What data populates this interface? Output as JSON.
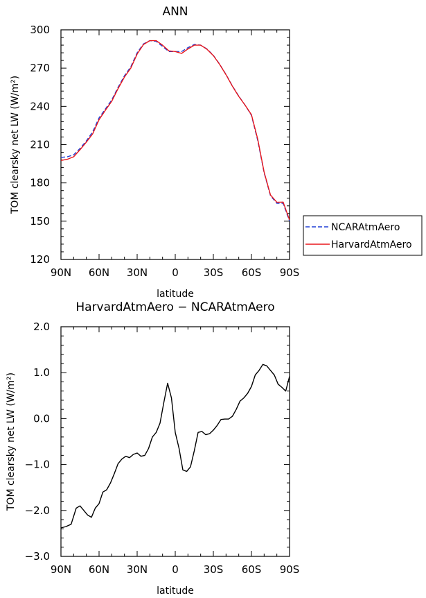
{
  "chart_data": [
    {
      "type": "line",
      "title": "ANN",
      "xlabel": "latitude",
      "ylabel": "TOM clearsky net LW (W/m²)",
      "xlim": [
        90,
        -90
      ],
      "ylim": [
        120,
        300
      ],
      "x_ticks": [
        90,
        60,
        30,
        0,
        -30,
        -60,
        -90
      ],
      "x_tick_labels": [
        "90N",
        "60N",
        "30N",
        "0",
        "30S",
        "60S",
        "90S"
      ],
      "y_ticks": [
        120,
        150,
        180,
        210,
        240,
        270,
        300
      ],
      "y_tick_labels": [
        "120",
        "150",
        "180",
        "210",
        "240",
        "270",
        "300"
      ],
      "legend_position": "right",
      "x": [
        90,
        85,
        80,
        75,
        70,
        65,
        60,
        55,
        50,
        45,
        40,
        35,
        30,
        25,
        20,
        15,
        10,
        5,
        0,
        -5,
        -10,
        -15,
        -20,
        -25,
        -30,
        -35,
        -40,
        -45,
        -50,
        -55,
        -60,
        -65,
        -70,
        -75,
        -80,
        -85,
        -90
      ],
      "series": [
        {
          "name": "NCARAtmAero",
          "color": "#1f3fd6",
          "dash": "dashed",
          "values": [
            200,
            200.5,
            202,
            207,
            213,
            220,
            231,
            238,
            245,
            255,
            264,
            271,
            282,
            289,
            291.5,
            291,
            287,
            283,
            283,
            283,
            286,
            288.5,
            288,
            285,
            280,
            273,
            265,
            256,
            248,
            241,
            233,
            213,
            188,
            170,
            164,
            164,
            150
          ]
        },
        {
          "name": "HarvardAtmAero",
          "color": "#e8161b",
          "dash": "solid",
          "values": [
            197.6,
            198.5,
            200.5,
            206,
            212,
            218.5,
            229.5,
            237,
            244,
            254,
            263,
            270,
            281,
            288.5,
            291.5,
            291.5,
            288,
            283.5,
            283,
            281.5,
            285,
            288,
            288,
            284.8,
            279.8,
            272.8,
            264.8,
            255.8,
            247.8,
            241,
            233.5,
            214,
            188.5,
            170.5,
            164.8,
            165,
            150.9
          ]
        }
      ]
    },
    {
      "type": "line",
      "title": "HarvardAtmAero − NCARAtmAero",
      "xlabel": "latitude",
      "ylabel": "TOM clearsky net LW (W/m²)",
      "xlim": [
        90,
        -90
      ],
      "ylim": [
        -3.0,
        2.0
      ],
      "x_ticks": [
        90,
        60,
        30,
        0,
        -30,
        -60,
        -90
      ],
      "x_tick_labels": [
        "90N",
        "60N",
        "30N",
        "0",
        "30S",
        "60S",
        "90S"
      ],
      "y_ticks": [
        -3.0,
        -2.0,
        -1.0,
        0.0,
        1.0,
        2.0
      ],
      "y_tick_labels": [
        "−3.0",
        "−2.0",
        "−1.0",
        "0.0",
        "1.0",
        "2.0"
      ],
      "x": [
        90,
        86,
        82,
        78,
        75,
        72,
        69,
        66,
        63,
        60,
        57,
        54,
        51,
        48,
        45,
        42,
        39,
        36,
        33,
        30,
        27,
        24,
        21,
        18,
        15,
        12,
        9,
        6,
        3,
        0,
        -3,
        -6,
        -9,
        -12,
        -15,
        -18,
        -21,
        -24,
        -27,
        -30,
        -33,
        -36,
        -39,
        -42,
        -45,
        -48,
        -51,
        -54,
        -57,
        -60,
        -63,
        -66,
        -69,
        -72,
        -75,
        -78,
        -81,
        -84,
        -87,
        -90
      ],
      "series": [
        {
          "name": "",
          "color": "#000000",
          "dash": "solid",
          "values": [
            -2.38,
            -2.35,
            -2.3,
            -1.95,
            -1.9,
            -2.0,
            -2.1,
            -2.15,
            -1.95,
            -1.85,
            -1.6,
            -1.55,
            -1.4,
            -1.2,
            -0.98,
            -0.88,
            -0.82,
            -0.85,
            -0.78,
            -0.75,
            -0.82,
            -0.8,
            -0.65,
            -0.4,
            -0.3,
            -0.1,
            0.35,
            0.77,
            0.45,
            -0.3,
            -0.65,
            -1.12,
            -1.15,
            -1.05,
            -0.7,
            -0.3,
            -0.28,
            -0.35,
            -0.33,
            -0.25,
            -0.15,
            -0.02,
            -0.01,
            -0.01,
            0.05,
            0.2,
            0.38,
            0.45,
            0.55,
            0.7,
            0.95,
            1.05,
            1.18,
            1.15,
            1.05,
            0.95,
            0.75,
            0.68,
            0.6,
            0.92
          ]
        }
      ]
    }
  ]
}
